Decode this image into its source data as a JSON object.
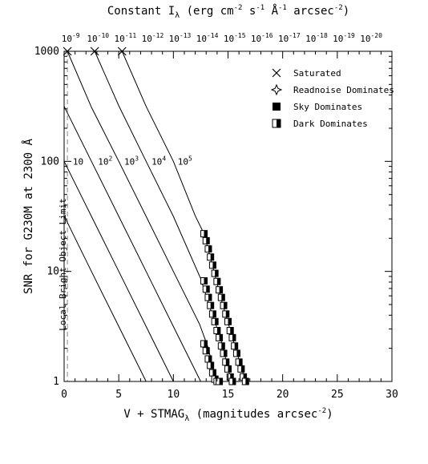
{
  "chart_data": {
    "type": "line",
    "x_scale": "linear",
    "y_scale": "log",
    "xlim": [
      0,
      30
    ],
    "ylim": [
      1,
      1000
    ],
    "x_ticks": [
      0,
      5,
      10,
      15,
      20,
      25,
      30
    ],
    "y_ticks": [
      1,
      10,
      100,
      1000
    ],
    "title_top": "Constant I",
    "title_top_sub": "λ",
    "title_top_rest": " (erg cm",
    "title_top_sup1": "-2",
    "title_top_mid1": " s",
    "title_top_sup2": "-1",
    "title_top_mid2": " Å",
    "title_top_sup3": "-1",
    "title_top_mid3": " arcsec",
    "title_top_sup4": "-2",
    "title_top_end": ")",
    "top_ticks": [
      {
        "base": "10",
        "exp": "-9",
        "x": 0.6
      },
      {
        "base": "10",
        "exp": "-10",
        "x": 3.1
      },
      {
        "base": "10",
        "exp": "-11",
        "x": 5.6
      },
      {
        "base": "10",
        "exp": "-12",
        "x": 8.1
      },
      {
        "base": "10",
        "exp": "-13",
        "x": 10.6
      },
      {
        "base": "10",
        "exp": "-14",
        "x": 13.1
      },
      {
        "base": "10",
        "exp": "-15",
        "x": 15.6
      },
      {
        "base": "10",
        "exp": "-16",
        "x": 18.1
      },
      {
        "base": "10",
        "exp": "-17",
        "x": 20.6
      },
      {
        "base": "10",
        "exp": "-18",
        "x": 23.1
      },
      {
        "base": "10",
        "exp": "-19",
        "x": 25.6
      },
      {
        "base": "10",
        "exp": "-20",
        "x": 28.1
      }
    ],
    "xlabel": "V + STMAG",
    "xlabel_sub": "λ",
    "xlabel_rest": " (magnitudes arcsec",
    "xlabel_sup": "-2",
    "xlabel_end": ")",
    "ylabel": "SNR for G230M at 2300 Å",
    "bright_limit": {
      "label": "Local Bright Object Limit",
      "x": 0.3
    },
    "exposure_labels": [
      {
        "base": "10",
        "exp": "",
        "x": 0.8,
        "y": 100
      },
      {
        "base": "10",
        "exp": "2",
        "x": 3.1,
        "y": 100
      },
      {
        "base": "10",
        "exp": "3",
        "x": 5.5,
        "y": 100
      },
      {
        "base": "10",
        "exp": "4",
        "x": 8.0,
        "y": 100
      },
      {
        "base": "10",
        "exp": "5",
        "x": 10.4,
        "y": 100
      }
    ],
    "series": [
      {
        "x": [
          0,
          2.5,
          5,
          7.5
        ],
        "y": [
          32,
          10,
          3.16,
          1
        ]
      },
      {
        "x": [
          0,
          2.5,
          5,
          7.5,
          10
        ],
        "y": [
          100,
          31.6,
          10,
          3.16,
          1
        ]
      },
      {
        "x": [
          0,
          2.5,
          5,
          7.5,
          10,
          12.5
        ],
        "y": [
          316,
          100,
          31.6,
          10,
          3.16,
          1
        ]
      },
      {
        "x": [
          0.3,
          2.5,
          5,
          7.5,
          10,
          12.4,
          13.2,
          13.9
        ],
        "y": [
          1000,
          310,
          100,
          31.6,
          10,
          3.3,
          2,
          1
        ]
      },
      {
        "x": [
          2.8,
          5,
          7.5,
          10,
          12.5,
          13.5,
          14.3,
          15.3
        ],
        "y": [
          1000,
          320,
          100,
          31.6,
          8.6,
          4.2,
          2.5,
          1
        ]
      },
      {
        "x": [
          5.3,
          7.5,
          10,
          12,
          12.8,
          13.5,
          14.4,
          15.4,
          16.6
        ],
        "y": [
          1000,
          316,
          100,
          32,
          22,
          12,
          5.5,
          2.5,
          1
        ]
      }
    ],
    "saturated_points": [
      {
        "x": 0.3,
        "y": 1000
      },
      {
        "x": 2.8,
        "y": 1000
      },
      {
        "x": 5.3,
        "y": 1000
      }
    ],
    "marker_series": [
      {
        "x": [
          12.8,
          13.0,
          13.2,
          13.4,
          13.6,
          13.8,
          14.0,
          14.2,
          14.4,
          14.6,
          14.8,
          15.0,
          15.2,
          15.4,
          15.6,
          15.8,
          16.0,
          16.2,
          16.4,
          16.6
        ],
        "y": [
          22,
          19,
          16,
          13.5,
          11.4,
          9.6,
          8.1,
          6.8,
          5.8,
          4.9,
          4.1,
          3.5,
          2.9,
          2.5,
          2.1,
          1.8,
          1.5,
          1.3,
          1.1,
          1.0
        ]
      },
      {
        "x": [
          12.8,
          13.0,
          13.2,
          13.4,
          13.6,
          13.8,
          14.0,
          14.2,
          14.4,
          14.6,
          14.8,
          15.0,
          15.2,
          15.4
        ],
        "y": [
          8.2,
          6.9,
          5.8,
          4.9,
          4.1,
          3.5,
          2.9,
          2.5,
          2.1,
          1.8,
          1.5,
          1.3,
          1.1,
          1.0
        ]
      },
      {
        "x": [
          12.8,
          13.0,
          13.2,
          13.4,
          13.6,
          13.8,
          14.0,
          14.2
        ],
        "y": [
          2.2,
          1.9,
          1.6,
          1.4,
          1.2,
          1.05,
          1.0,
          1.0
        ]
      }
    ],
    "legend": [
      {
        "label": "Saturated",
        "marker": "cross"
      },
      {
        "label": "Readnoise Dominates",
        "marker": "star"
      },
      {
        "label": "Sky Dominates",
        "marker": "filled-square"
      },
      {
        "label": "Dark Dominates",
        "marker": "half-square"
      }
    ],
    "legend_position": "top-right"
  }
}
